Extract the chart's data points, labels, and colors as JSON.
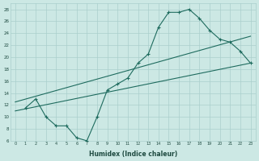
{
  "xlabel": "Humidex (Indice chaleur)",
  "background_color": "#cce8e4",
  "grid_color": "#aacfcc",
  "line_color": "#1e6b5e",
  "xlim": [
    -0.5,
    23.5
  ],
  "ylim": [
    6,
    29
  ],
  "xticks": [
    0,
    1,
    2,
    3,
    4,
    5,
    6,
    7,
    8,
    9,
    10,
    11,
    12,
    13,
    14,
    15,
    16,
    17,
    18,
    19,
    20,
    21,
    22,
    23
  ],
  "yticks": [
    6,
    8,
    10,
    12,
    14,
    16,
    18,
    20,
    22,
    24,
    26,
    28
  ],
  "curve1_x": [
    1,
    2,
    3,
    4,
    5,
    6,
    7,
    8,
    9,
    10,
    11,
    12,
    13,
    14,
    15,
    16,
    17,
    18,
    19,
    20,
    21,
    22,
    23
  ],
  "curve1_y": [
    11.5,
    13,
    10,
    8.5,
    8.5,
    6.5,
    6,
    10,
    14.5,
    15.5,
    16.5,
    19,
    20.5,
    25,
    27.5,
    27.5,
    28,
    26.5,
    24.5,
    23,
    22.5,
    21,
    19
  ],
  "line2_x": [
    0,
    23
  ],
  "line2_y": [
    11.0,
    19.0
  ],
  "line3_x": [
    0,
    23
  ],
  "line3_y": [
    12.5,
    23.5
  ]
}
